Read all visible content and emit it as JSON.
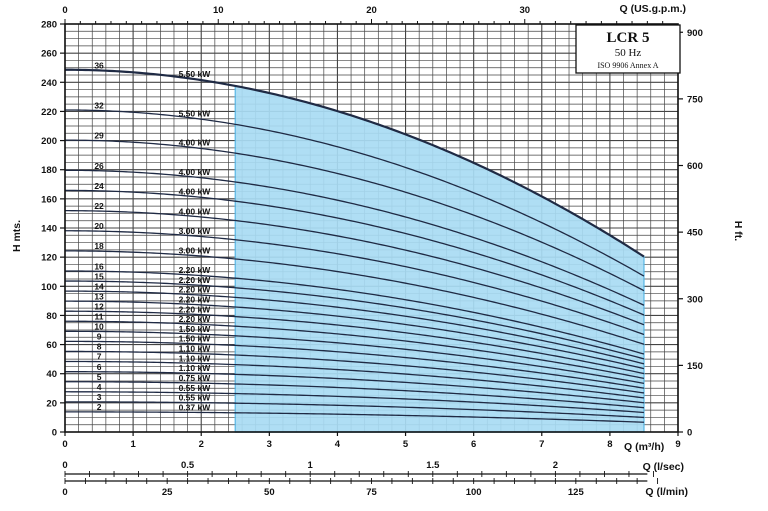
{
  "chart_data": {
    "type": "line",
    "title_box": {
      "model": "LCR 5",
      "frequency": "50 Hz",
      "standard": "ISO 9906 Annex A"
    },
    "x_axes": {
      "flow_m3h": {
        "label": "Q (m³/h)",
        "range": [
          0,
          9
        ],
        "ticks": [
          "0",
          "1",
          "2",
          "3",
          "4",
          "5",
          "6",
          "7",
          "8",
          "9"
        ]
      },
      "flow_lsec": {
        "label": "Q (l/sec)",
        "range": [
          0,
          2.5
        ],
        "ticks": [
          "0",
          "0.5",
          "1",
          "1.5",
          "2"
        ]
      },
      "flow_lmin": {
        "label": "Q (l/min)",
        "range": [
          0,
          150
        ],
        "ticks": [
          "0",
          "25",
          "50",
          "75",
          "100",
          "125"
        ]
      },
      "flow_usgpm": {
        "label": "Q (US.g.p.m.)",
        "range": [
          0,
          40
        ],
        "ticks": [
          "0",
          "10",
          "20",
          "30"
        ]
      }
    },
    "y_axes": {
      "head_m": {
        "label": "H mts.",
        "range": [
          0,
          280
        ],
        "ticks": [
          "0",
          "20",
          "40",
          "60",
          "80",
          "100",
          "120",
          "140",
          "160",
          "180",
          "200",
          "220",
          "240",
          "260",
          "280"
        ]
      },
      "head_ft": {
        "label": "H ft.",
        "range": [
          0,
          918.6
        ],
        "ticks": [
          "0",
          "150",
          "300",
          "450",
          "600",
          "750",
          "900"
        ]
      }
    },
    "operating_range_m3h": [
      2.5,
      8.5
    ],
    "grid": true,
    "series": [
      {
        "stages": "36",
        "power": "5.50 kW",
        "h0": 248.6,
        "h_end": 120.4
      },
      {
        "stages": "32",
        "power": "5.50 kW",
        "h0": 221.0,
        "h_end": 107.0
      },
      {
        "stages": "29",
        "power": "4.00 kW",
        "h0": 200.3,
        "h_end": 97.0
      },
      {
        "stages": "26",
        "power": "4.00 kW",
        "h0": 179.6,
        "h_end": 87.0
      },
      {
        "stages": "24",
        "power": "4.00 kW",
        "h0": 165.8,
        "h_end": 80.3
      },
      {
        "stages": "22",
        "power": "4.00 kW",
        "h0": 151.9,
        "h_end": 73.6
      },
      {
        "stages": "20",
        "power": "3.00 kW",
        "h0": 138.1,
        "h_end": 66.9
      },
      {
        "stages": "18",
        "power": "3.00 kW",
        "h0": 124.3,
        "h_end": 60.2
      },
      {
        "stages": "16",
        "power": "2.20 kW",
        "h0": 110.5,
        "h_end": 53.5
      },
      {
        "stages": "15",
        "power": "2.20 kW",
        "h0": 103.6,
        "h_end": 50.2
      },
      {
        "stages": "14",
        "power": "2.20 kW",
        "h0": 96.7,
        "h_end": 46.8
      },
      {
        "stages": "13",
        "power": "2.20 kW",
        "h0": 89.8,
        "h_end": 43.5
      },
      {
        "stages": "12",
        "power": "2.20 kW",
        "h0": 82.9,
        "h_end": 40.1
      },
      {
        "stages": "11",
        "power": "2.20 kW",
        "h0": 76.0,
        "h_end": 36.8
      },
      {
        "stages": "10",
        "power": "1.50 kW",
        "h0": 69.1,
        "h_end": 33.4
      },
      {
        "stages": "9",
        "power": "1.50 kW",
        "h0": 62.2,
        "h_end": 30.1
      },
      {
        "stages": "8",
        "power": "1.10 kW",
        "h0": 55.3,
        "h_end": 26.8
      },
      {
        "stages": "7",
        "power": "1.10 kW",
        "h0": 48.4,
        "h_end": 23.4
      },
      {
        "stages": "6",
        "power": "1.10 kW",
        "h0": 41.4,
        "h_end": 20.1
      },
      {
        "stages": "5",
        "power": "0.75 kW",
        "h0": 34.5,
        "h_end": 16.7
      },
      {
        "stages": "4",
        "power": "0.55 kW",
        "h0": 27.6,
        "h_end": 13.4
      },
      {
        "stages": "3",
        "power": "0.55 kW",
        "h0": 20.7,
        "h_end": 10.0
      },
      {
        "stages": "2",
        "power": "0.37 kW",
        "h0": 13.8,
        "h_end": 6.7
      }
    ],
    "colors": {
      "fill": "#a9dcf4",
      "fill_edge": "#5bb8e6",
      "curve": "#1f2a44",
      "grid": "#444444"
    }
  }
}
